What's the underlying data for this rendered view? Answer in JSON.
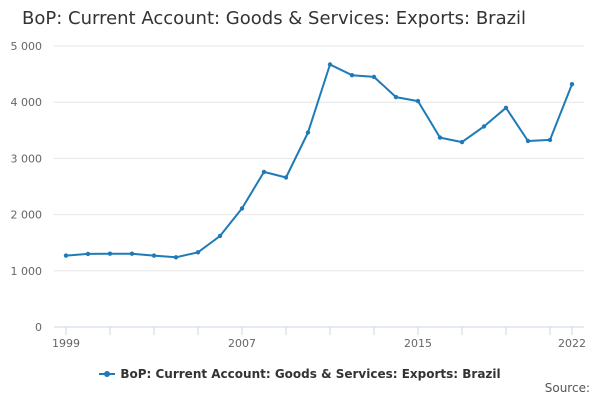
{
  "title": "BoP: Current Account: Goods & Services: Exports: Brazil",
  "source_label": "Source:",
  "colors": {
    "series": "#1f7ab8",
    "grid": "#e6e6e6",
    "axis": "#ccd6eb",
    "text": "#333333"
  },
  "chart_data": {
    "type": "line",
    "title": "BoP: Current Account: Goods & Services: Exports: Brazil",
    "xlabel": "",
    "ylabel": "",
    "x": [
      1999,
      2000,
      2001,
      2002,
      2003,
      2004,
      2005,
      2006,
      2007,
      2008,
      2009,
      2010,
      2011,
      2012,
      2013,
      2014,
      2015,
      2016,
      2017,
      2018,
      2019,
      2020,
      2021,
      2022
    ],
    "series": [
      {
        "name": "BoP: Current Account: Goods & Services: Exports: Brazil",
        "values": [
          1270,
          1300,
          1305,
          1305,
          1270,
          1240,
          1330,
          1620,
          2110,
          2760,
          2660,
          3460,
          4670,
          4480,
          4450,
          4090,
          4020,
          3370,
          3290,
          3570,
          3900,
          3310,
          3330,
          4320
        ]
      }
    ],
    "xlim": [
      1999,
      2022
    ],
    "ylim": [
      0,
      5000
    ],
    "x_tick_labels": [
      "1999",
      "2007",
      "2015",
      "2022"
    ],
    "y_tick_labels": [
      "0",
      "1 000",
      "2 000",
      "3 000",
      "4 000",
      "5 000"
    ],
    "grid": true,
    "legend_position": "bottom-center"
  }
}
